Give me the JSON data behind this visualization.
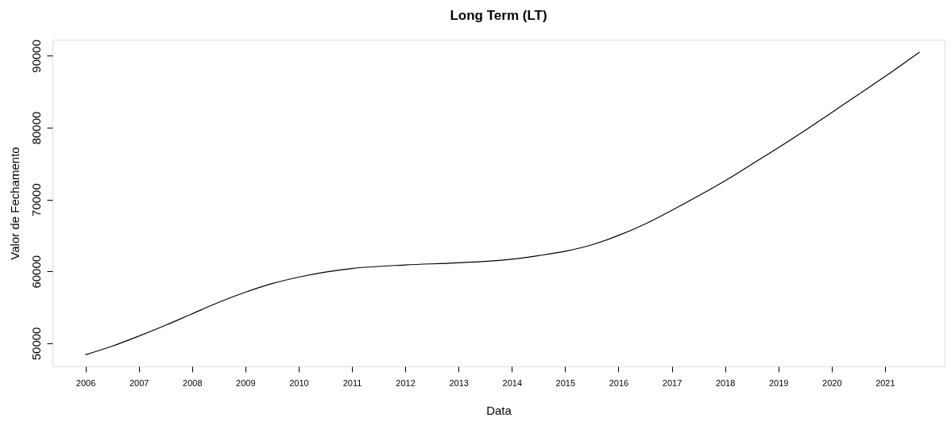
{
  "chart_data": {
    "type": "line",
    "title": "Long Term (LT)",
    "xlabel": "Data",
    "ylabel": "Valor de Fechamento",
    "x": [
      2006,
      2006.5,
      2007,
      2007.5,
      2008,
      2008.5,
      2009,
      2009.5,
      2010,
      2010.5,
      2011,
      2012,
      2013,
      2014,
      2014.5,
      2015,
      2015.5,
      2016,
      2016.5,
      2017,
      2017.5,
      2018,
      2018.5,
      2019,
      2019.5,
      2020,
      2020.5,
      2021,
      2021.65
    ],
    "series": [
      {
        "color": "#000000",
        "values": [
          48400,
          49600,
          51000,
          52500,
          54100,
          55700,
          57100,
          58300,
          59200,
          59900,
          60400,
          60900,
          61200,
          61700,
          62200,
          62800,
          63700,
          65000,
          66600,
          68500,
          70500,
          72600,
          74900,
          77200,
          79600,
          82100,
          84600,
          87100,
          90500
        ]
      }
    ],
    "xlim": [
      2005.38,
      2022.12
    ],
    "ylim": [
      46790,
      92240
    ],
    "xticks": [
      2006,
      2007,
      2008,
      2009,
      2010,
      2011,
      2012,
      2013,
      2014,
      2015,
      2016,
      2017,
      2018,
      2019,
      2020,
      2021
    ],
    "yticks": [
      50000,
      60000,
      70000,
      80000,
      90000
    ],
    "grid": false,
    "marker": "none",
    "line_style": "solid"
  }
}
